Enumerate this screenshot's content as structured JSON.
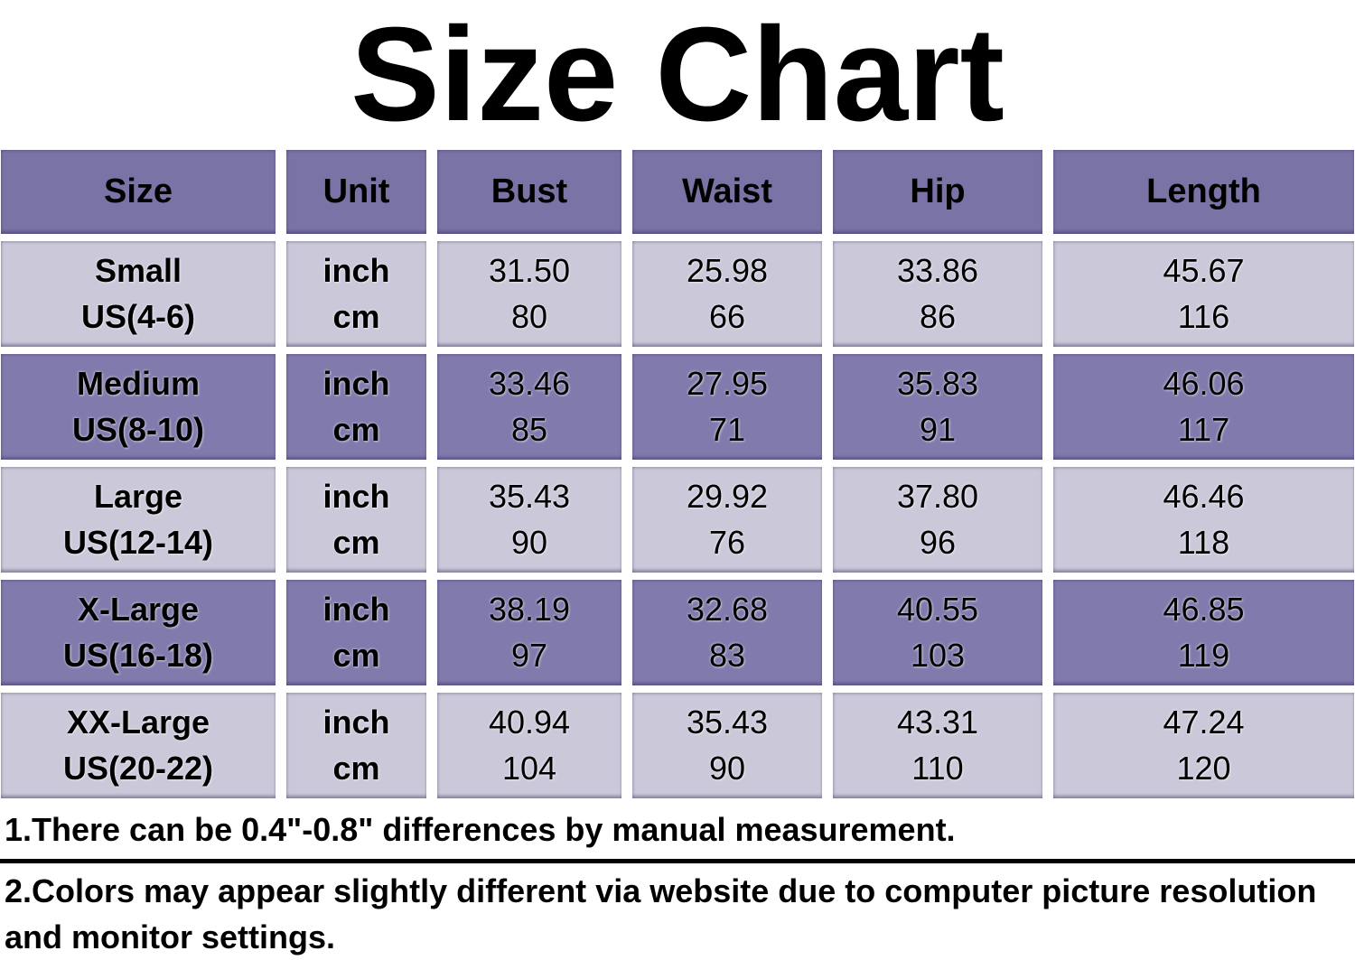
{
  "chart_data": {
    "type": "table",
    "title": "Size Chart",
    "columns": [
      "Size",
      "Unit",
      "Bust",
      "Waist",
      "Hip",
      "Length"
    ],
    "rows": [
      {
        "size_label": "Small",
        "us_range": "US(4-6)",
        "units": [
          "inch",
          "cm"
        ],
        "bust": [
          "31.50",
          "80"
        ],
        "waist": [
          "25.98",
          "66"
        ],
        "hip": [
          "33.86",
          "86"
        ],
        "length": [
          "45.67",
          "116"
        ]
      },
      {
        "size_label": "Medium",
        "us_range": "US(8-10)",
        "units": [
          "inch",
          "cm"
        ],
        "bust": [
          "33.46",
          "85"
        ],
        "waist": [
          "27.95",
          "71"
        ],
        "hip": [
          "35.83",
          "91"
        ],
        "length": [
          "46.06",
          "117"
        ]
      },
      {
        "size_label": "Large",
        "us_range": "US(12-14)",
        "units": [
          "inch",
          "cm"
        ],
        "bust": [
          "35.43",
          "90"
        ],
        "waist": [
          "29.92",
          "76"
        ],
        "hip": [
          "37.80",
          "96"
        ],
        "length": [
          "46.46",
          "118"
        ]
      },
      {
        "size_label": "X-Large",
        "us_range": "US(16-18)",
        "units": [
          "inch",
          "cm"
        ],
        "bust": [
          "38.19",
          "97"
        ],
        "waist": [
          "32.68",
          "83"
        ],
        "hip": [
          "40.55",
          "103"
        ],
        "length": [
          "46.85",
          "119"
        ]
      },
      {
        "size_label": "XX-Large",
        "us_range": "US(20-22)",
        "units": [
          "inch",
          "cm"
        ],
        "bust": [
          "40.94",
          "104"
        ],
        "waist": [
          "35.43",
          "90"
        ],
        "hip": [
          "43.31",
          "110"
        ],
        "length": [
          "47.24",
          "120"
        ]
      }
    ],
    "notes": [
      "1.There can be 0.4\"-0.8\" differences by manual measurement.",
      "2.Colors may appear slightly different via website due to computer picture resolution and monitor settings."
    ]
  },
  "colors": {
    "header_bg": "#7a74a6",
    "row_dark_bg": "#807bac",
    "row_light_bg": "#cac8d9",
    "text": "#000000",
    "background": "#ffffff",
    "divider": "#000000"
  }
}
